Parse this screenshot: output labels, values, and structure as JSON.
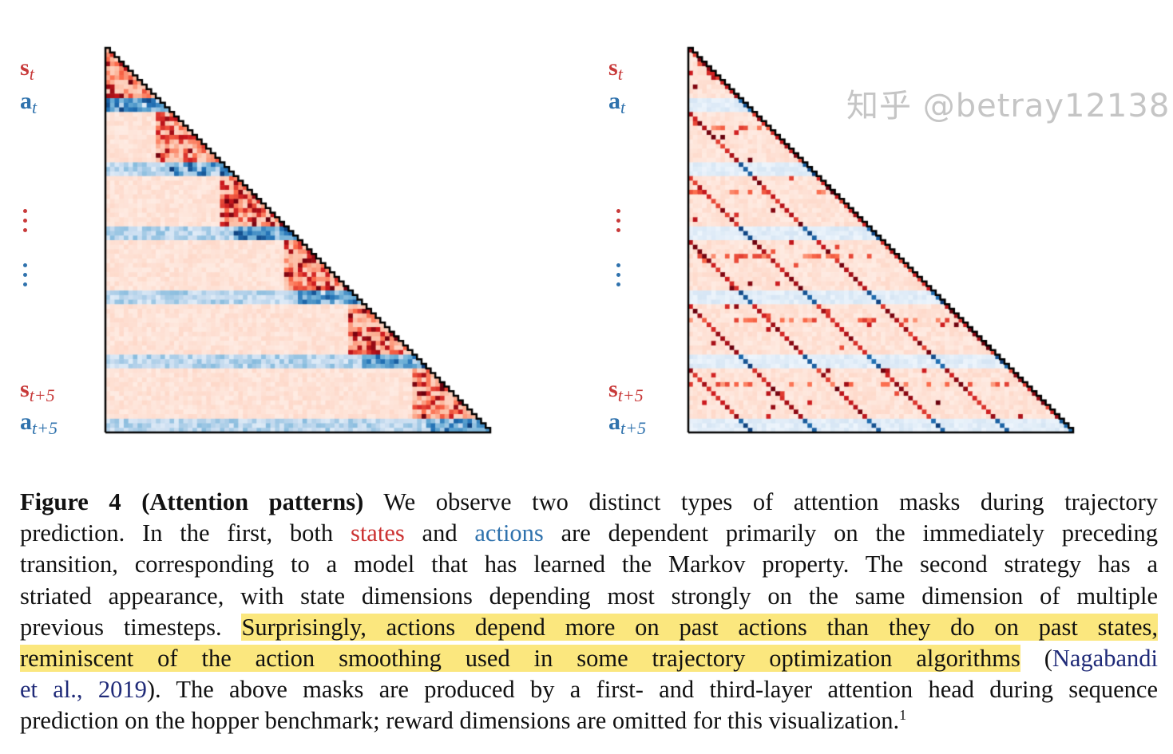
{
  "figure": {
    "panels": [
      {
        "pattern": "markov",
        "labels": {
          "s_t": {
            "main": "s",
            "sub": "t"
          },
          "a_t": {
            "main": "a",
            "sub": "t"
          },
          "s_t5": {
            "main": "s",
            "sub": "t+5"
          },
          "a_t5": {
            "main": "a",
            "sub": "t+5"
          }
        }
      },
      {
        "pattern": "striated",
        "labels": {
          "s_t": {
            "main": "s",
            "sub": "t"
          },
          "a_t": {
            "main": "a",
            "sub": "t"
          },
          "s_t5": {
            "main": "s",
            "sub": "t+5"
          },
          "a_t5": {
            "main": "a",
            "sub": "t+5"
          }
        }
      }
    ],
    "colors": {
      "state": "#c83a3a",
      "action": "#2f72ad",
      "highlight": "#fbe77e",
      "citation": "#1f2a78"
    }
  },
  "caption": {
    "label": "Figure 4 (Attention patterns)",
    "l1": " We observe two distinct types of attention masks during trajectory",
    "l2a": "prediction. In the first, both ",
    "l2_states": "states",
    "l2b": " and ",
    "l2_actions": "actions",
    "l2c": " are dependent primarily on the immediately preceding",
    "l3": "transition, corresponding to a model that has learned the Markov property. The second strategy has a",
    "l4": "striated appearance, with state dimensions depending most strongly on the same dimension of multiple",
    "l5a": "previous timesteps. ",
    "l5_hl": "Surprisingly, actions depend more on past actions than they do on past states,",
    "l6_hl": "reminiscent of the action smoothing used in some trajectory optimization algorithms",
    "l6b": " (",
    "l6_cite": "Nagabandi",
    "l7_cite": "et al., 2019",
    "l7b": "). The above masks are produced by a first- and third-layer attention head during sequence",
    "l8": "prediction on the hopper benchmark; reward dimensions are omitted for this visualization.",
    "footnote_mark": "1"
  },
  "watermark": "知乎 @betray12138"
}
